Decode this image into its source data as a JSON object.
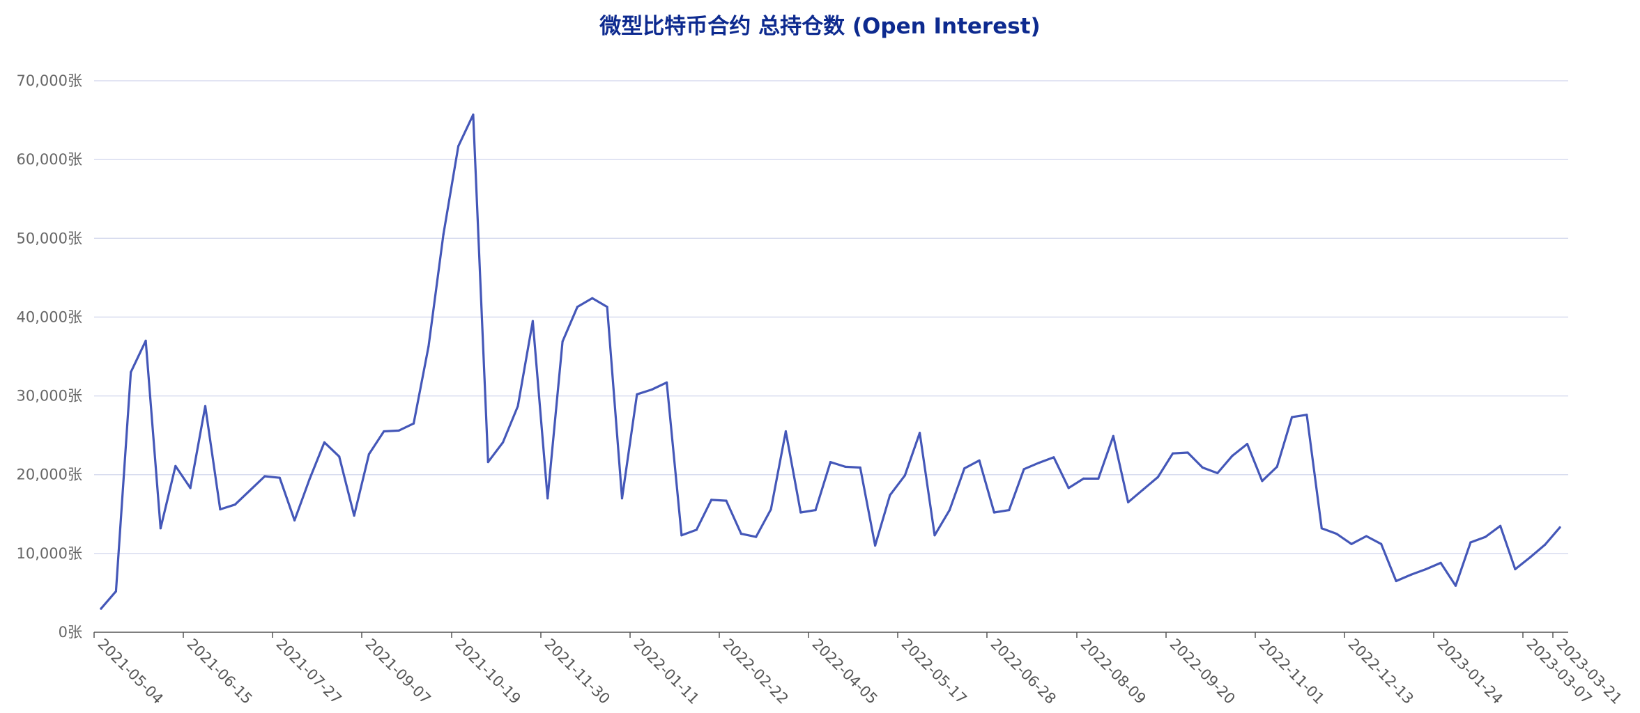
{
  "chart_data": {
    "type": "line",
    "title": "微型比特币合约 总持仓数 (Open Interest)",
    "xlabel": "",
    "ylabel": "",
    "ylim": [
      0,
      70000
    ],
    "y_ticks": [
      0,
      10000,
      20000,
      30000,
      40000,
      50000,
      60000,
      70000
    ],
    "y_tick_labels": [
      "0张",
      "10,000张",
      "20,000张",
      "30,000张",
      "40,000张",
      "50,000张",
      "60,000张",
      "70,000张"
    ],
    "x_tick_labels": [
      "2021-05-04",
      "2021-06-15",
      "2021-07-27",
      "2021-09-07",
      "2021-10-19",
      "2021-11-30",
      "2022-01-11",
      "2022-02-22",
      "2022-04-05",
      "2022-05-17",
      "2022-06-28",
      "2022-08-09",
      "2022-09-20",
      "2022-11-01",
      "2022-12-13",
      "2023-01-24",
      "2023-03-07",
      "2023-03-21"
    ],
    "grid": true,
    "legend": "none",
    "colors": {
      "line": "#4457b8",
      "grid": "#d8dcef",
      "axis": "#555555",
      "title": "#0d2a8f"
    },
    "series": [
      {
        "values": [
          3000,
          5200,
          33000,
          37000,
          13200,
          21100,
          18300,
          28700,
          15600,
          16200,
          18000,
          19800,
          19600,
          14200,
          19400,
          24100,
          22300,
          14800,
          22600,
          25500,
          25600,
          26500,
          36300,
          50500,
          61700,
          65700,
          21600,
          24100,
          28700,
          39500,
          17000,
          36900,
          41300,
          42400,
          41300,
          17000,
          30200,
          30800,
          31700,
          12300,
          13000,
          16800,
          16700,
          12500,
          12100,
          15600,
          25500,
          15200,
          15500,
          21600,
          21000,
          20900,
          11000,
          17400,
          19900,
          25300,
          12300,
          15500,
          20800,
          21800,
          15200,
          15500,
          20700,
          21500,
          22200,
          18300,
          19500,
          19500,
          24900,
          16500,
          18100,
          19700,
          22700,
          22800,
          20900,
          20200,
          22400,
          23900,
          19200,
          21000,
          27300,
          27600,
          13200,
          12500,
          11200,
          12200,
          11200,
          6500,
          7300,
          8000,
          8800,
          5900,
          11400,
          12100,
          13500,
          8000,
          9500,
          11100,
          13300
        ]
      }
    ]
  }
}
